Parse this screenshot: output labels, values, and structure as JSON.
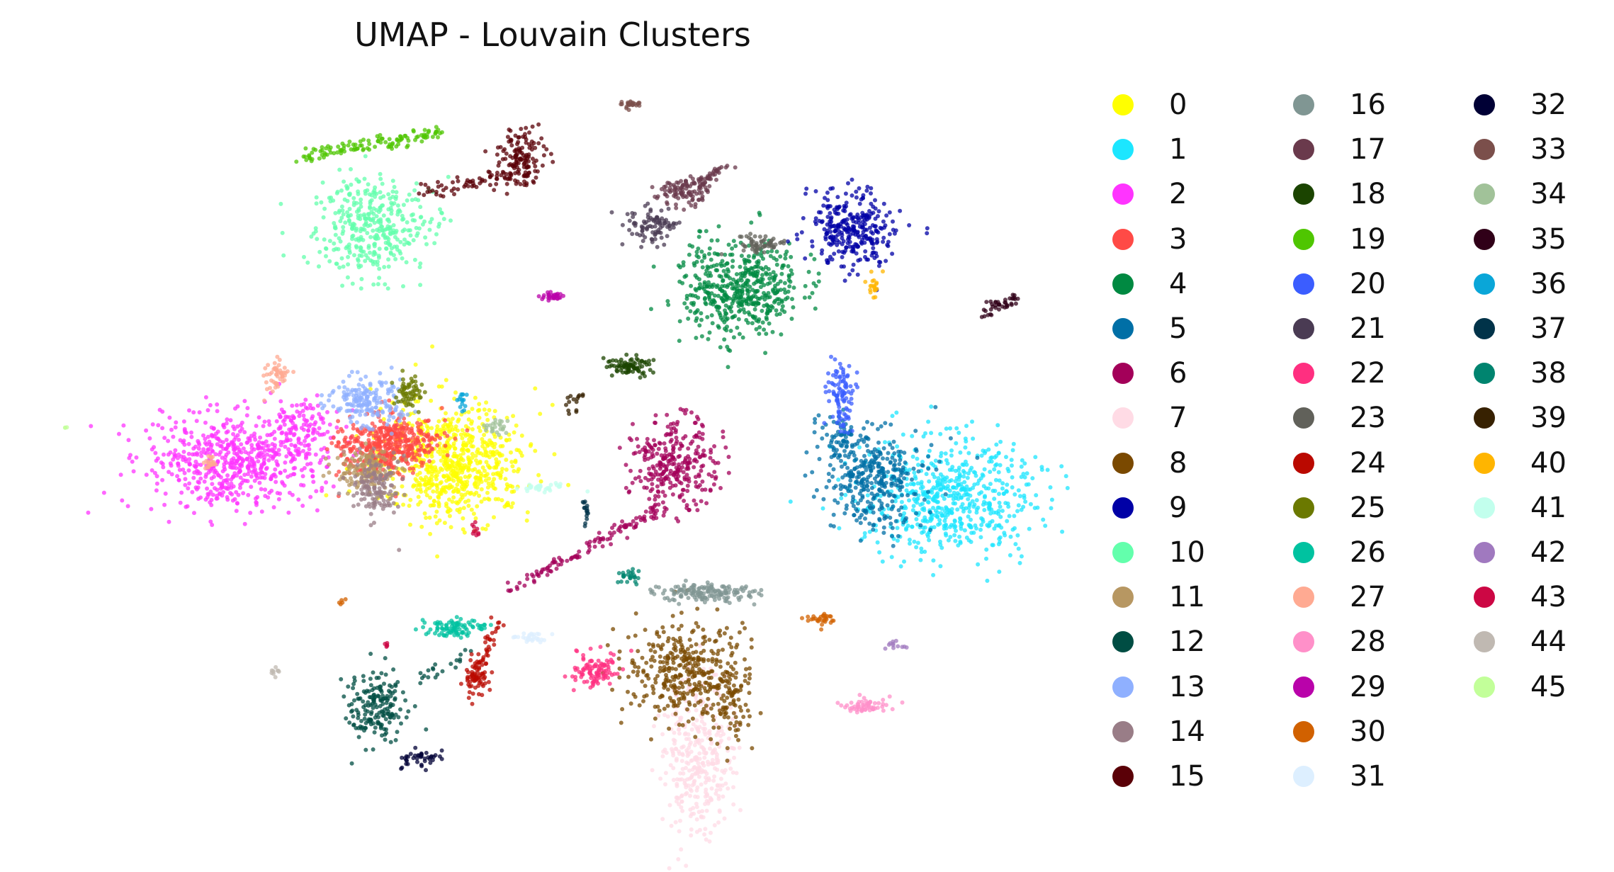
{
  "chart_data": {
    "type": "scatter",
    "title": "UMAP - Louvain Clusters",
    "xlabel": "",
    "ylabel": "",
    "axes_visible": false,
    "grid": false,
    "legend_placement": "right, 3 columns",
    "legend": [
      {
        "label": "0",
        "color": "#ffff00"
      },
      {
        "label": "1",
        "color": "#1ce6ff"
      },
      {
        "label": "2",
        "color": "#ff34ff"
      },
      {
        "label": "3",
        "color": "#ff4a46"
      },
      {
        "label": "4",
        "color": "#008941"
      },
      {
        "label": "5",
        "color": "#006fa6"
      },
      {
        "label": "6",
        "color": "#a30059"
      },
      {
        "label": "7",
        "color": "#ffdbe5"
      },
      {
        "label": "8",
        "color": "#7a4900"
      },
      {
        "label": "9",
        "color": "#0000a6"
      },
      {
        "label": "10",
        "color": "#63ffac"
      },
      {
        "label": "11",
        "color": "#b79762"
      },
      {
        "label": "12",
        "color": "#004d43"
      },
      {
        "label": "13",
        "color": "#8fb0ff"
      },
      {
        "label": "14",
        "color": "#997d87"
      },
      {
        "label": "15",
        "color": "#5a0007"
      },
      {
        "label": "16",
        "color": "#809693"
      },
      {
        "label": "17",
        "color": "#6a3a4c"
      },
      {
        "label": "18",
        "color": "#1b4400"
      },
      {
        "label": "19",
        "color": "#4fc601"
      },
      {
        "label": "20",
        "color": "#3b5dff"
      },
      {
        "label": "21",
        "color": "#4a3b53"
      },
      {
        "label": "22",
        "color": "#ff2f80"
      },
      {
        "label": "23",
        "color": "#61615a"
      },
      {
        "label": "24",
        "color": "#ba0900"
      },
      {
        "label": "25",
        "color": "#6b7900"
      },
      {
        "label": "26",
        "color": "#00c2a0"
      },
      {
        "label": "27",
        "color": "#ffaa92"
      },
      {
        "label": "28",
        "color": "#ff90c9"
      },
      {
        "label": "29",
        "color": "#b903aa"
      },
      {
        "label": "30",
        "color": "#d16100"
      },
      {
        "label": "31",
        "color": "#ddefff"
      },
      {
        "label": "32",
        "color": "#000035"
      },
      {
        "label": "33",
        "color": "#7b4f4b"
      },
      {
        "label": "34",
        "color": "#a1c299"
      },
      {
        "label": "35",
        "color": "#300018"
      },
      {
        "label": "36",
        "color": "#0aa6d8"
      },
      {
        "label": "37",
        "color": "#013349"
      },
      {
        "label": "38",
        "color": "#00846f"
      },
      {
        "label": "39",
        "color": "#372101"
      },
      {
        "label": "40",
        "color": "#ffb500"
      },
      {
        "label": "41",
        "color": "#c2ffed"
      },
      {
        "label": "42",
        "color": "#a079bf"
      },
      {
        "label": "43",
        "color": "#cc0744"
      },
      {
        "label": "44",
        "color": "#c0b9b2"
      },
      {
        "label": "45",
        "color": "#c2ff99"
      }
    ],
    "clusters": [
      {
        "id": 0,
        "blobs": [
          [
            0.41,
            0.53,
            0.06,
            0.06,
            700
          ]
        ]
      },
      {
        "id": 1,
        "blobs": [
          [
            0.86,
            0.57,
            0.07,
            0.06,
            600
          ]
        ]
      },
      {
        "id": 2,
        "blobs": [
          [
            0.21,
            0.53,
            0.07,
            0.05,
            600
          ],
          [
            0.27,
            0.49,
            0.03,
            0.03,
            120
          ]
        ]
      },
      {
        "id": 3,
        "blobs": [
          [
            0.35,
            0.51,
            0.04,
            0.03,
            450
          ]
        ]
      },
      {
        "id": 4,
        "blobs": [
          [
            0.67,
            0.33,
            0.05,
            0.05,
            500
          ]
        ]
      },
      {
        "id": 5,
        "blobs": [
          [
            0.79,
            0.55,
            0.04,
            0.05,
            350
          ],
          [
            0.76,
            0.5,
            0.015,
            0.03,
            60
          ]
        ]
      },
      {
        "id": 6,
        "blobs": [
          [
            0.61,
            0.53,
            0.035,
            0.045,
            300
          ]
        ],
        "lines": [
          [
            [
              0.6,
              0.58
            ],
            [
              0.46,
              0.68
            ],
            120
          ]
        ]
      },
      {
        "id": 7,
        "blobs": [
          [
            0.63,
            0.87,
            0.03,
            0.08,
            350
          ]
        ]
      },
      {
        "id": 8,
        "blobs": [
          [
            0.62,
            0.77,
            0.05,
            0.05,
            350
          ],
          [
            0.66,
            0.8,
            0.02,
            0.05,
            100
          ]
        ]
      },
      {
        "id": 9,
        "blobs": [
          [
            0.77,
            0.26,
            0.035,
            0.04,
            300
          ]
        ]
      },
      {
        "id": 10,
        "blobs": [
          [
            0.34,
            0.26,
            0.05,
            0.05,
            380
          ]
        ]
      },
      {
        "id": 11,
        "blobs": [
          [
            0.33,
            0.54,
            0.025,
            0.02,
            150
          ]
        ]
      },
      {
        "id": 12,
        "blobs": [
          [
            0.34,
            0.81,
            0.025,
            0.04,
            180
          ]
        ],
        "lines": [
          [
            [
              0.38,
              0.78
            ],
            [
              0.42,
              0.75
            ],
            20
          ]
        ]
      },
      {
        "id": 13,
        "blobs": [
          [
            0.33,
            0.46,
            0.03,
            0.025,
            180
          ]
        ]
      },
      {
        "id": 14,
        "blobs": [
          [
            0.34,
            0.56,
            0.02,
            0.03,
            140
          ]
        ]
      },
      {
        "id": 15,
        "blobs": [
          [
            0.47,
            0.18,
            0.02,
            0.03,
            140
          ]
        ],
        "lines": [
          [
            [
              0.38,
              0.22
            ],
            [
              0.47,
              0.2
            ],
            60
          ]
        ]
      },
      {
        "id": 16,
        "blobs": [
          [
            0.64,
            0.68,
            0.04,
            0.01,
            150
          ]
        ]
      },
      {
        "id": 17,
        "blobs": [
          [
            0.62,
            0.22,
            0.02,
            0.015,
            100
          ]
        ],
        "lines": [
          [
            [
              0.63,
              0.21
            ],
            [
              0.66,
              0.19
            ],
            40
          ]
        ]
      },
      {
        "id": 18,
        "blobs": [
          [
            0.57,
            0.42,
            0.02,
            0.01,
            80
          ]
        ]
      },
      {
        "id": 19,
        "lines": [
          [
            [
              0.27,
              0.18
            ],
            [
              0.4,
              0.15
            ],
            120
          ]
        ]
      },
      {
        "id": 20,
        "blobs": [
          [
            0.76,
            0.45,
            0.01,
            0.04,
            100
          ]
        ]
      },
      {
        "id": 21,
        "blobs": [
          [
            0.59,
            0.26,
            0.02,
            0.02,
            90
          ]
        ]
      },
      {
        "id": 22,
        "blobs": [
          [
            0.54,
            0.77,
            0.02,
            0.02,
            100
          ]
        ]
      },
      {
        "id": 23,
        "blobs": [
          [
            0.69,
            0.28,
            0.02,
            0.01,
            60
          ]
        ]
      },
      {
        "id": 24,
        "blobs": [
          [
            0.43,
            0.78,
            0.01,
            0.02,
            60
          ]
        ],
        "lines": [
          [
            [
              0.45,
              0.71
            ],
            [
              0.43,
              0.78
            ],
            40
          ]
        ]
      },
      {
        "id": 25,
        "blobs": [
          [
            0.37,
            0.45,
            0.01,
            0.015,
            60
          ]
        ]
      },
      {
        "id": 26,
        "blobs": [
          [
            0.41,
            0.72,
            0.025,
            0.01,
            90
          ]
        ]
      },
      {
        "id": 27,
        "blobs": [
          [
            0.25,
            0.43,
            0.01,
            0.015,
            50
          ],
          [
            0.19,
            0.53,
            0.005,
            0.01,
            20
          ]
        ]
      },
      {
        "id": 28,
        "blobs": [
          [
            0.78,
            0.81,
            0.02,
            0.008,
            60
          ]
        ]
      },
      {
        "id": 29,
        "blobs": [
          [
            0.5,
            0.34,
            0.01,
            0.004,
            30
          ]
        ]
      },
      {
        "id": 30,
        "blobs": [
          [
            0.74,
            0.71,
            0.015,
            0.006,
            30
          ],
          [
            0.31,
            0.69,
            0.003,
            0.003,
            5
          ]
        ]
      },
      {
        "id": 31,
        "blobs": [
          [
            0.48,
            0.73,
            0.015,
            0.006,
            30
          ]
        ]
      },
      {
        "id": 32,
        "blobs": [
          [
            0.38,
            0.87,
            0.015,
            0.01,
            40
          ]
        ]
      },
      {
        "id": 33,
        "blobs": [
          [
            0.57,
            0.12,
            0.01,
            0.005,
            25
          ]
        ]
      },
      {
        "id": 34,
        "blobs": [
          [
            0.45,
            0.49,
            0.01,
            0.008,
            25
          ]
        ]
      },
      {
        "id": 35,
        "lines": [
          [
            [
              0.89,
              0.36
            ],
            [
              0.92,
              0.34
            ],
            40
          ]
        ]
      },
      {
        "id": 36,
        "blobs": [
          [
            0.42,
            0.46,
            0.006,
            0.01,
            15
          ]
        ]
      },
      {
        "id": 37,
        "blobs": [
          [
            0.53,
            0.59,
            0.003,
            0.015,
            15
          ]
        ]
      },
      {
        "id": 38,
        "blobs": [
          [
            0.57,
            0.66,
            0.01,
            0.01,
            25
          ]
        ]
      },
      {
        "id": 39,
        "lines": [
          [
            [
              0.51,
              0.47
            ],
            [
              0.53,
              0.45
            ],
            15
          ]
        ]
      },
      {
        "id": 40,
        "blobs": [
          [
            0.79,
            0.33,
            0.005,
            0.015,
            20
          ]
        ]
      },
      {
        "id": 41,
        "blobs": [
          [
            0.49,
            0.56,
            0.02,
            0.005,
            30
          ]
        ]
      },
      {
        "id": 42,
        "blobs": [
          [
            0.81,
            0.74,
            0.01,
            0.004,
            12
          ]
        ]
      },
      {
        "id": 43,
        "blobs": [
          [
            0.43,
            0.61,
            0.003,
            0.01,
            10
          ],
          [
            0.35,
            0.74,
            0.003,
            0.003,
            5
          ]
        ]
      },
      {
        "id": 44,
        "blobs": [
          [
            0.25,
            0.77,
            0.005,
            0.005,
            10
          ]
        ]
      },
      {
        "id": 45,
        "blobs": [
          [
            0.06,
            0.49,
            0.002,
            0.003,
            3
          ]
        ]
      }
    ]
  }
}
